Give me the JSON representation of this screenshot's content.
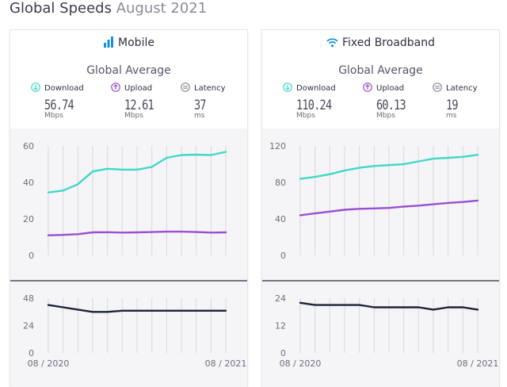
{
  "page": {
    "title": "Global Speeds",
    "period": "August 2021"
  },
  "colors": {
    "download": "#3fd8c6",
    "upload": "#9a4fd0",
    "latency": "#1d2338",
    "grid": "#d9d9de",
    "tick": "#6d6d7a"
  },
  "panels": [
    {
      "icon": "bar-signal-icon",
      "title": "Mobile",
      "subtitle": "Global Average",
      "metrics": [
        {
          "label": "Download",
          "value": "56.74",
          "unit": "Mbps"
        },
        {
          "label": "Upload",
          "value": "12.61",
          "unit": "Mbps"
        },
        {
          "label": "Latency",
          "value": "37",
          "unit": "ms"
        }
      ]
    },
    {
      "icon": "wifi-icon",
      "title": "Fixed Broadband",
      "subtitle": "Global Average",
      "metrics": [
        {
          "label": "Download",
          "value": "110.24",
          "unit": "Mbps"
        },
        {
          "label": "Upload",
          "value": "60.13",
          "unit": "Mbps"
        },
        {
          "label": "Latency",
          "value": "19",
          "unit": "ms"
        }
      ]
    }
  ],
  "chart_data": [
    {
      "type": "line",
      "panel": "Mobile",
      "x": [
        "08 / 2020",
        "09 / 2020",
        "10 / 2020",
        "11 / 2020",
        "12 / 2020",
        "01 / 2021",
        "02 / 2021",
        "03 / 2021",
        "04 / 2021",
        "05 / 2021",
        "06 / 2021",
        "07 / 2021",
        "08 / 2021"
      ],
      "x_tick_labels": [
        "08 / 2020",
        "08 / 2021"
      ],
      "speed": {
        "ylim": [
          0,
          60
        ],
        "yticks": [
          0,
          20,
          40,
          60
        ],
        "series": [
          {
            "name": "Download",
            "values": [
              34.5,
              35.5,
              39,
              46,
              47.5,
              47,
              47,
              48.5,
              53.5,
              55,
              55.2,
              55,
              56.74
            ]
          },
          {
            "name": "Upload",
            "values": [
              11,
              11.2,
              11.6,
              12.6,
              12.7,
              12.5,
              12.6,
              12.8,
              13,
              13,
              12.8,
              12.5,
              12.61
            ]
          }
        ]
      },
      "latency": {
        "ylim": [
          0,
          48
        ],
        "yticks": [
          0,
          24,
          48
        ],
        "series": [
          {
            "name": "Latency",
            "values": [
              42,
              40,
              38,
              36,
              36,
              37,
              37,
              37,
              37,
              37,
              37,
              37,
              37
            ]
          }
        ]
      }
    },
    {
      "type": "line",
      "panel": "Fixed Broadband",
      "x": [
        "08 / 2020",
        "09 / 2020",
        "10 / 2020",
        "11 / 2020",
        "12 / 2020",
        "01 / 2021",
        "02 / 2021",
        "03 / 2021",
        "04 / 2021",
        "05 / 2021",
        "06 / 2021",
        "07 / 2021",
        "08 / 2021"
      ],
      "x_tick_labels": [
        "08 / 2020",
        "08 / 2021"
      ],
      "speed": {
        "ylim": [
          0,
          120
        ],
        "yticks": [
          0,
          40,
          80,
          120
        ],
        "series": [
          {
            "name": "Download",
            "values": [
              84,
              86,
              89,
              93,
              96,
              98,
              99,
              100,
              103,
              106,
              107,
              108,
              110.24
            ]
          },
          {
            "name": "Upload",
            "values": [
              44,
              46,
              48,
              50,
              51,
              51.5,
              52,
              53.5,
              54.5,
              56,
              57.5,
              58.5,
              60.13
            ]
          }
        ]
      },
      "latency": {
        "ylim": [
          0,
          24
        ],
        "yticks": [
          0,
          12,
          24
        ],
        "series": [
          {
            "name": "Latency",
            "values": [
              22,
              21,
              21,
              21,
              21,
              20,
              20,
              20,
              20,
              19,
              20,
              20,
              19
            ]
          }
        ]
      }
    }
  ]
}
